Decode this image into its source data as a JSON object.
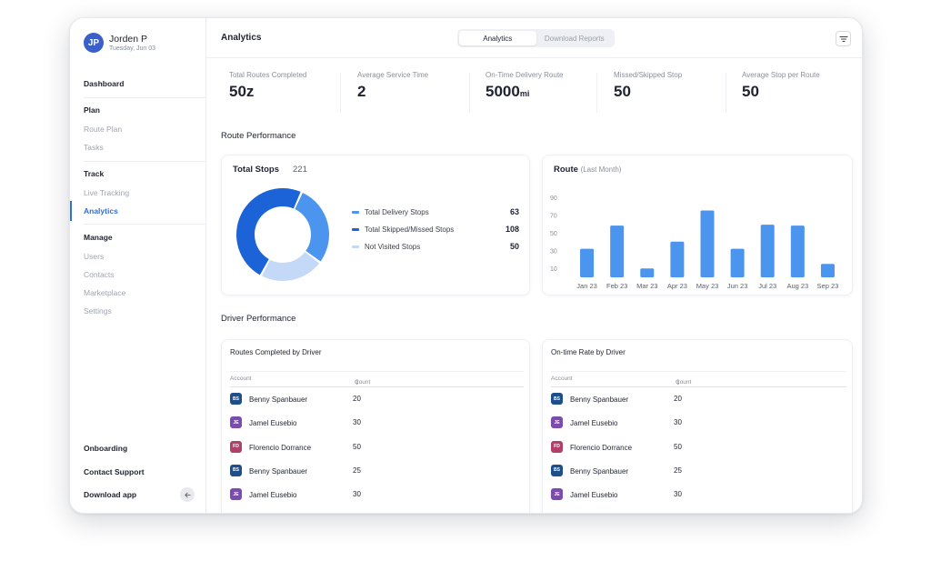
{
  "profile": {
    "initials": "JP",
    "name": "Jorden P",
    "date": "Tuesday, Jun 03"
  },
  "nav": {
    "dashboard": "Dashboard",
    "plan": "Plan",
    "route_plan": "Route Plan",
    "tasks": "Tasks",
    "track": "Track",
    "live_tracking": "Live Tracking",
    "analytics": "Analytics",
    "manage": "Manage",
    "users": "Users",
    "contacts": "Contacts",
    "marketplace": "Marketplace",
    "settings": "Settings",
    "onboarding": "Onboarding",
    "contact_support": "Contact Support",
    "download_app": "Download app"
  },
  "header": {
    "title": "Analytics",
    "tabs": [
      "Analytics",
      "Download Reports"
    ],
    "filter_icon": "filter-icon"
  },
  "stats": [
    {
      "label": "Total Routes Completed",
      "value": "50z",
      "unit": ""
    },
    {
      "label": "Average Service Time",
      "value": "2",
      "unit": ""
    },
    {
      "label": "On-Time Delivery Route",
      "value": "5000",
      "unit": "mi"
    },
    {
      "label": "Missed/Skipped Stop",
      "value": "50",
      "unit": ""
    },
    {
      "label": "Average Stop per Route",
      "value": "50",
      "unit": ""
    }
  ],
  "route_performance": {
    "title": "Route Performance",
    "donut": {
      "title": "Total Stops",
      "total": "221",
      "items": [
        {
          "label": "Total Delivery Stops",
          "value": "63",
          "color": "#4b95ee"
        },
        {
          "label": "Total Skipped/Missed Stops",
          "value": "108",
          "color": "#1c63d8"
        },
        {
          "label": "Not Visited Stops",
          "value": "50",
          "color": "#c3d9f7"
        }
      ]
    }
  },
  "chart_data": {
    "type": "bar",
    "title": "Route",
    "subtitle": "(Last Month)",
    "categories": [
      "Jan 23",
      "Feb 23",
      "Mar 23",
      "Apr 23",
      "May 23",
      "Jun 23",
      "Jul 23",
      "Aug 23",
      "Sep 23"
    ],
    "values": [
      32,
      58,
      10,
      40,
      75,
      32,
      59,
      58,
      15
    ],
    "yticks": [
      "90",
      "70",
      "50",
      "30",
      "10"
    ],
    "ylim": [
      0,
      100
    ],
    "color": "#4b95ee"
  },
  "driver_performance": {
    "title": "Driver Performance",
    "tables": [
      {
        "title": "Routes Completed by Driver",
        "col_account": "Account",
        "col_count": "Count",
        "rows": [
          {
            "initials": "BS",
            "name": "Benny Spanbauer",
            "count": "20",
            "color": "#1d4f8a"
          },
          {
            "initials": "JE",
            "name": "Jamel Eusebio",
            "count": "30",
            "color": "#7b4bb0"
          },
          {
            "initials": "FD",
            "name": "Florencio Dorrance",
            "count": "50",
            "color": "#b0406a"
          },
          {
            "initials": "BS",
            "name": "Benny Spanbauer",
            "count": "25",
            "color": "#1d4f8a"
          },
          {
            "initials": "JE",
            "name": "Jamel Eusebio",
            "count": "30",
            "color": "#7b4bb0"
          }
        ]
      },
      {
        "title": "On-time Rate by Driver",
        "col_account": "Account",
        "col_count": "Count",
        "rows": [
          {
            "initials": "BS",
            "name": "Benny Spanbauer",
            "count": "20",
            "color": "#1d4f8a"
          },
          {
            "initials": "JE",
            "name": "Jamel Eusebio",
            "count": "30",
            "color": "#7b4bb0"
          },
          {
            "initials": "FD",
            "name": "Florencio Dorrance",
            "count": "50",
            "color": "#b0406a"
          },
          {
            "initials": "BS",
            "name": "Benny Spanbauer",
            "count": "25",
            "color": "#1d4f8a"
          },
          {
            "initials": "JE",
            "name": "Jamel Eusebio",
            "count": "30",
            "color": "#7b4bb0"
          }
        ]
      }
    ]
  }
}
